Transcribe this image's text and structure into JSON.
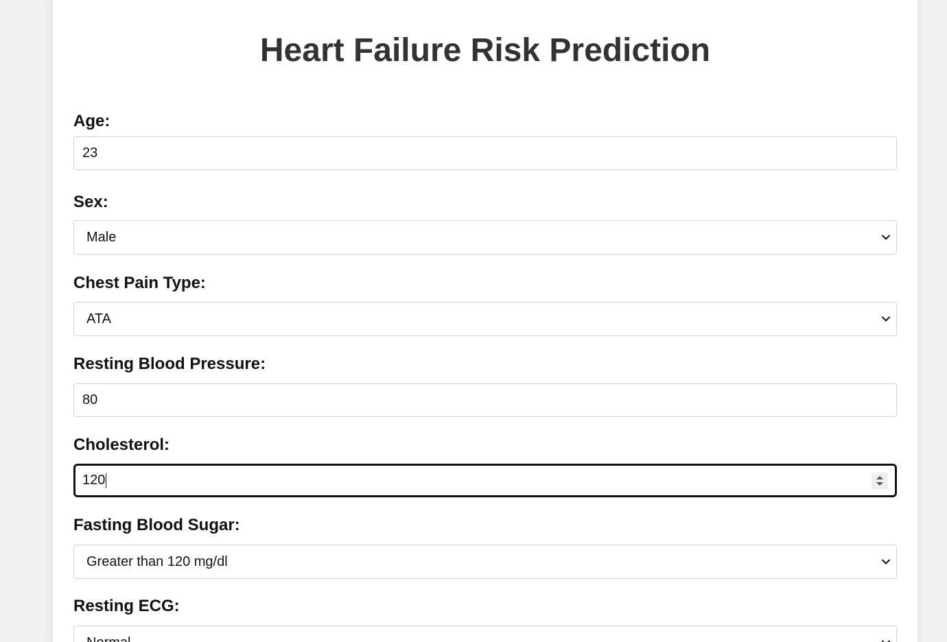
{
  "page": {
    "title": "Heart Failure Risk Prediction"
  },
  "form": {
    "age": {
      "label": "Age:",
      "value": "23"
    },
    "sex": {
      "label": "Sex:",
      "value": "Male"
    },
    "chest_pain_type": {
      "label": "Chest Pain Type:",
      "value": "ATA"
    },
    "resting_bp": {
      "label": "Resting Blood Pressure:",
      "value": "80"
    },
    "cholesterol": {
      "label": "Cholesterol:",
      "value": "120"
    },
    "fasting_bs": {
      "label": "Fasting Blood Sugar:",
      "value": "Greater than 120 mg/dl"
    },
    "resting_ecg": {
      "label": "Resting ECG:",
      "value": "Normal"
    }
  },
  "icons": {
    "select_arrow": "chevron-down-icon",
    "number_spinner": "spinner-arrows-icon"
  },
  "colors": {
    "background": "#f0f0f0",
    "card": "#ffffff",
    "title": "#333333",
    "border": "#d4d4d4",
    "focus_border": "#111111"
  }
}
